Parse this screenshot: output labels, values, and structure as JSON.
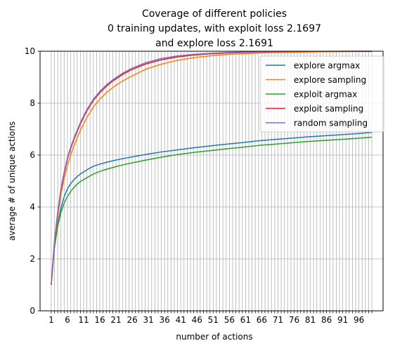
{
  "chart_data": {
    "type": "line",
    "title": [
      "Coverage of different policies",
      "0 training updates, with exploit loss 2.1697",
      "and explore loss 2.1691"
    ],
    "xlabel": "number of actions",
    "ylabel": "average # of unique actions",
    "xlim": [
      -2.45,
      103.45
    ],
    "ylim": [
      0,
      10
    ],
    "xticks": [
      1,
      6,
      11,
      16,
      21,
      26,
      31,
      36,
      41,
      46,
      51,
      56,
      61,
      66,
      71,
      76,
      81,
      86,
      91,
      96
    ],
    "yticks": [
      0,
      2,
      4,
      6,
      8,
      10
    ],
    "grid": true,
    "legend_position": "upper right",
    "x": [
      1,
      2,
      3,
      4,
      5,
      6,
      7,
      8,
      9,
      10,
      12,
      14,
      16,
      18,
      20,
      23,
      26,
      30,
      35,
      40,
      45,
      50,
      55,
      60,
      65,
      70,
      75,
      80,
      85,
      90,
      95,
      100
    ],
    "series": [
      {
        "name": "explore argmax",
        "color": "#1f77b4",
        "values": [
          1.0,
          2.5,
          3.35,
          3.95,
          4.4,
          4.7,
          4.9,
          5.05,
          5.17,
          5.27,
          5.43,
          5.57,
          5.65,
          5.72,
          5.78,
          5.86,
          5.93,
          6.02,
          6.12,
          6.2,
          6.28,
          6.35,
          6.42,
          6.48,
          6.55,
          6.6,
          6.65,
          6.7,
          6.74,
          6.78,
          6.82,
          6.87
        ]
      },
      {
        "name": "explore sampling",
        "color": "#ff7f0e",
        "values": [
          1.0,
          2.6,
          3.6,
          4.5,
          5.1,
          5.6,
          6.0,
          6.35,
          6.65,
          6.95,
          7.45,
          7.85,
          8.15,
          8.4,
          8.6,
          8.85,
          9.05,
          9.3,
          9.5,
          9.65,
          9.75,
          9.82,
          9.87,
          9.9,
          9.93,
          9.95,
          9.96,
          9.97,
          9.98,
          9.985,
          9.99,
          9.99
        ]
      },
      {
        "name": "exploit argmax",
        "color": "#2ca02c",
        "values": [
          1.0,
          2.45,
          3.25,
          3.8,
          4.15,
          4.4,
          4.6,
          4.75,
          4.88,
          4.98,
          5.13,
          5.27,
          5.37,
          5.45,
          5.52,
          5.62,
          5.7,
          5.8,
          5.92,
          6.02,
          6.1,
          6.17,
          6.24,
          6.3,
          6.37,
          6.42,
          6.47,
          6.52,
          6.56,
          6.6,
          6.64,
          6.69
        ]
      },
      {
        "name": "exploit sampling",
        "color": "#d62728",
        "values": [
          1.0,
          2.65,
          3.75,
          4.65,
          5.3,
          5.85,
          6.25,
          6.6,
          6.9,
          7.2,
          7.7,
          8.1,
          8.4,
          8.65,
          8.85,
          9.1,
          9.3,
          9.5,
          9.67,
          9.78,
          9.85,
          9.9,
          9.93,
          9.95,
          9.97,
          9.98,
          9.985,
          9.99,
          9.993,
          9.995,
          9.997,
          9.998
        ]
      },
      {
        "name": "random sampling",
        "color": "#9467bd",
        "values": [
          1.0,
          2.7,
          3.8,
          4.7,
          5.35,
          5.9,
          6.3,
          6.65,
          6.95,
          7.25,
          7.75,
          8.15,
          8.45,
          8.7,
          8.9,
          9.15,
          9.35,
          9.55,
          9.72,
          9.82,
          9.88,
          9.92,
          9.95,
          9.97,
          9.98,
          9.985,
          9.99,
          9.993,
          9.995,
          9.997,
          9.998,
          9.999
        ]
      }
    ]
  }
}
